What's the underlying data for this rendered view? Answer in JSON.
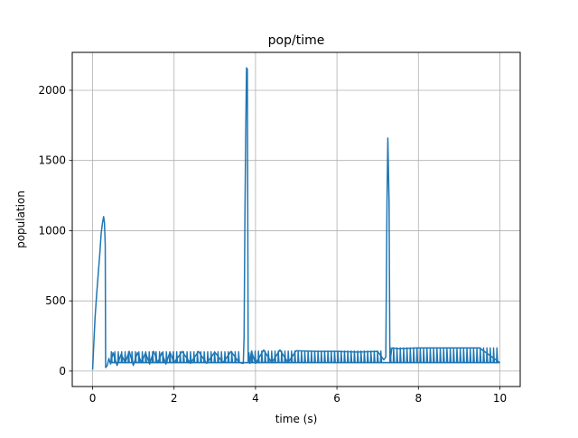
{
  "chart_data": {
    "type": "line",
    "title": "pop/time",
    "xlabel": "time (s)",
    "ylabel": "population",
    "xlim": [
      -0.5,
      10.5
    ],
    "ylim": [
      -110,
      2270
    ],
    "xticks": [
      "0",
      "2",
      "4",
      "6",
      "8",
      "10"
    ],
    "xtick_values": [
      0,
      2,
      4,
      6,
      8,
      10
    ],
    "yticks": [
      "0",
      "500",
      "1000",
      "1500",
      "2000"
    ],
    "ytick_values": [
      0,
      500,
      1000,
      1500,
      2000
    ],
    "grid": true,
    "line_color": "#1f77b4",
    "series": [
      {
        "baseline": 60,
        "x": [
          0.0,
          0.03,
          0.06,
          0.1,
          0.14,
          0.18,
          0.21,
          0.24,
          0.27,
          0.29,
          0.31,
          0.32,
          0.36,
          0.4,
          0.44,
          0.5,
          0.6,
          0.7,
          0.8,
          0.9,
          1.0,
          1.1,
          1.2,
          1.3,
          1.4,
          1.5,
          1.6,
          1.7,
          1.8,
          1.9,
          2.0,
          2.2,
          2.4,
          2.6,
          2.8,
          3.0,
          3.2,
          3.4,
          3.6,
          3.7,
          3.72,
          3.74,
          3.76,
          3.78,
          3.8,
          3.82,
          3.84,
          3.86,
          3.9,
          4.0,
          4.2,
          4.4,
          4.6,
          4.8,
          5.0,
          5.5,
          6.0,
          6.5,
          7.0,
          7.15,
          7.2,
          7.23,
          7.25,
          7.28,
          7.3,
          7.35,
          7.5,
          8.0,
          8.5,
          9.0,
          9.5,
          10.0
        ],
        "y": [
          10,
          200,
          380,
          550,
          700,
          850,
          980,
          1050,
          1100,
          1060,
          900,
          25,
          40,
          90,
          50,
          130,
          40,
          120,
          60,
          140,
          40,
          130,
          60,
          130,
          50,
          140,
          60,
          130,
          50,
          135,
          60,
          140,
          55,
          140,
          55,
          135,
          60,
          140,
          60,
          55,
          250,
          1100,
          1700,
          2160,
          2150,
          60,
          130,
          55,
          140,
          55,
          150,
          60,
          150,
          60,
          145,
          140,
          140,
          135,
          140,
          80,
          100,
          1240,
          1660,
          1200,
          60,
          165,
          160,
          165,
          165,
          165,
          165,
          60
        ],
        "spikes": [
          {
            "start": 0.45,
            "end": 3.66,
            "count": 38,
            "peak": 138
          },
          {
            "start": 3.9,
            "end": 7.15,
            "count": 40,
            "peak": 143
          },
          {
            "start": 7.3,
            "end": 10.0,
            "count": 33,
            "peak": 165
          }
        ]
      }
    ]
  }
}
